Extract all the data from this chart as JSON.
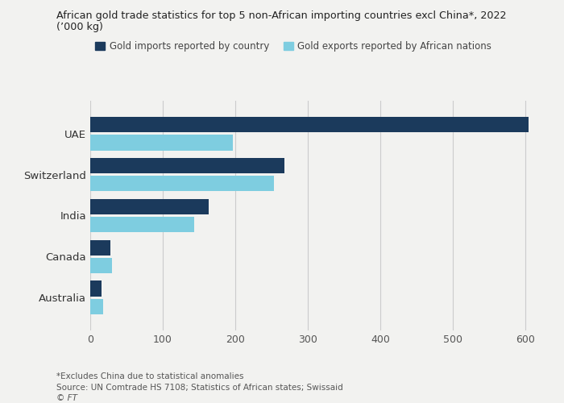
{
  "title_line1": "African gold trade statistics for top 5 non-African importing countries excl China*, 2022",
  "title_line2": "(’000 kg)",
  "categories": [
    "UAE",
    "Switzerland",
    "India",
    "Canada",
    "Australia"
  ],
  "imports": [
    604,
    268,
    163,
    28,
    15
  ],
  "exports": [
    197,
    253,
    143,
    30,
    18
  ],
  "color_imports": "#1b3a5c",
  "color_exports": "#7ecde0",
  "legend_imports": "Gold imports reported by country",
  "legend_exports": "Gold exports reported by African nations",
  "xlim": [
    0,
    630
  ],
  "xticks": [
    0,
    100,
    200,
    300,
    400,
    500,
    600
  ],
  "footnote1": "*Excludes China due to statistical anomalies",
  "footnote2": "Source: UN Comtrade HS 7108; Statistics of African states; Swissaid",
  "footnote3": "© FT",
  "bg_color": "#f2f2f0",
  "bar_height": 0.38,
  "figsize": [
    7.0,
    5.0
  ],
  "dpi": 100
}
